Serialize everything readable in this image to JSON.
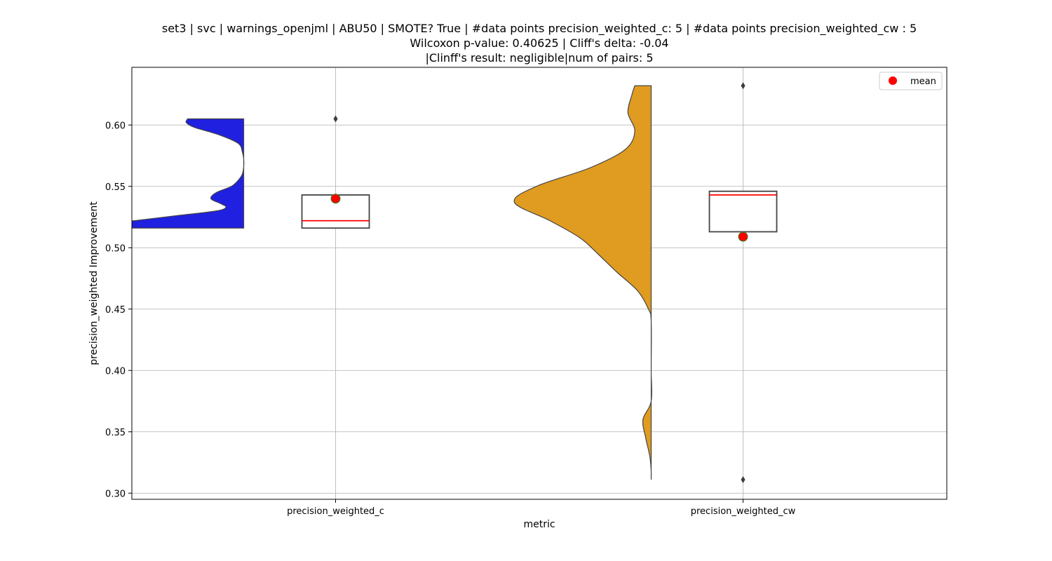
{
  "chart_data": {
    "type": "violin+box",
    "title_lines": [
      "set3 | svc | warnings_openjml | ABU50 | SMOTE? True | #data points precision_weighted_c: 5 | #data points precision_weighted_cw : 5",
      "Wilcoxon p-value: 0.40625 | Cliff's delta: -0.04",
      "|Clinff's result: negligible|num of pairs: 5"
    ],
    "xlabel": "metric",
    "ylabel": "precision_weighted Improvement",
    "categories": [
      "precision_weighted_c",
      "precision_weighted_cw"
    ],
    "ylim": [
      0.295,
      0.647
    ],
    "yticks": [
      0.3,
      0.35,
      0.4,
      0.45,
      0.5,
      0.55,
      0.6
    ],
    "ytick_labels": [
      "0.30",
      "0.35",
      "0.40",
      "0.45",
      "0.50",
      "0.55",
      "0.60"
    ],
    "grid": true,
    "legend": {
      "position": "top-right",
      "entries": [
        {
          "label": "mean",
          "color": "#ff0000",
          "marker": "circle"
        }
      ]
    },
    "series": [
      {
        "category": "precision_weighted_c",
        "violin_color": "#2020e0",
        "violin_side": "left",
        "violin_range": [
          0.516,
          0.605
        ],
        "density": [
          [
            0.516,
            1.0
          ],
          [
            0.52,
            0.98
          ],
          [
            0.522,
            0.8
          ],
          [
            0.526,
            0.5
          ],
          [
            0.53,
            0.2
          ],
          [
            0.533,
            0.13
          ],
          [
            0.536,
            0.17
          ],
          [
            0.54,
            0.24
          ],
          [
            0.545,
            0.2
          ],
          [
            0.55,
            0.09
          ],
          [
            0.555,
            0.04
          ],
          [
            0.56,
            0.01
          ],
          [
            0.566,
            0.0
          ],
          [
            0.572,
            0.0
          ],
          [
            0.578,
            0.01
          ],
          [
            0.585,
            0.04
          ],
          [
            0.592,
            0.18
          ],
          [
            0.598,
            0.36
          ],
          [
            0.602,
            0.42
          ],
          [
            0.605,
            0.41
          ]
        ],
        "box": {
          "q1": 0.516,
          "median": 0.522,
          "q3": 0.543,
          "whisker_low": 0.516,
          "whisker_high": 0.543
        },
        "fliers": [
          0.605
        ],
        "mean": 0.54
      },
      {
        "category": "precision_weighted_cw",
        "violin_color": "#e09c20",
        "violin_side": "left",
        "violin_range": [
          0.311,
          0.632
        ],
        "density": [
          [
            0.311,
            0.0
          ],
          [
            0.318,
            0.0
          ],
          [
            0.33,
            0.01
          ],
          [
            0.345,
            0.04
          ],
          [
            0.36,
            0.06
          ],
          [
            0.375,
            0.0
          ],
          [
            0.4,
            0.0
          ],
          [
            0.44,
            0.0
          ],
          [
            0.45,
            0.02
          ],
          [
            0.465,
            0.1
          ],
          [
            0.48,
            0.25
          ],
          [
            0.495,
            0.39
          ],
          [
            0.508,
            0.52
          ],
          [
            0.522,
            0.74
          ],
          [
            0.537,
            1.0
          ],
          [
            0.55,
            0.84
          ],
          [
            0.565,
            0.45
          ],
          [
            0.58,
            0.19
          ],
          [
            0.595,
            0.12
          ],
          [
            0.61,
            0.17
          ],
          [
            0.625,
            0.14
          ],
          [
            0.632,
            0.12
          ]
        ],
        "box": {
          "q1": 0.513,
          "median": 0.543,
          "q3": 0.546,
          "whisker_low": 0.513,
          "whisker_high": 0.546
        },
        "fliers": [
          0.632,
          0.311
        ],
        "mean": 0.509
      }
    ]
  }
}
